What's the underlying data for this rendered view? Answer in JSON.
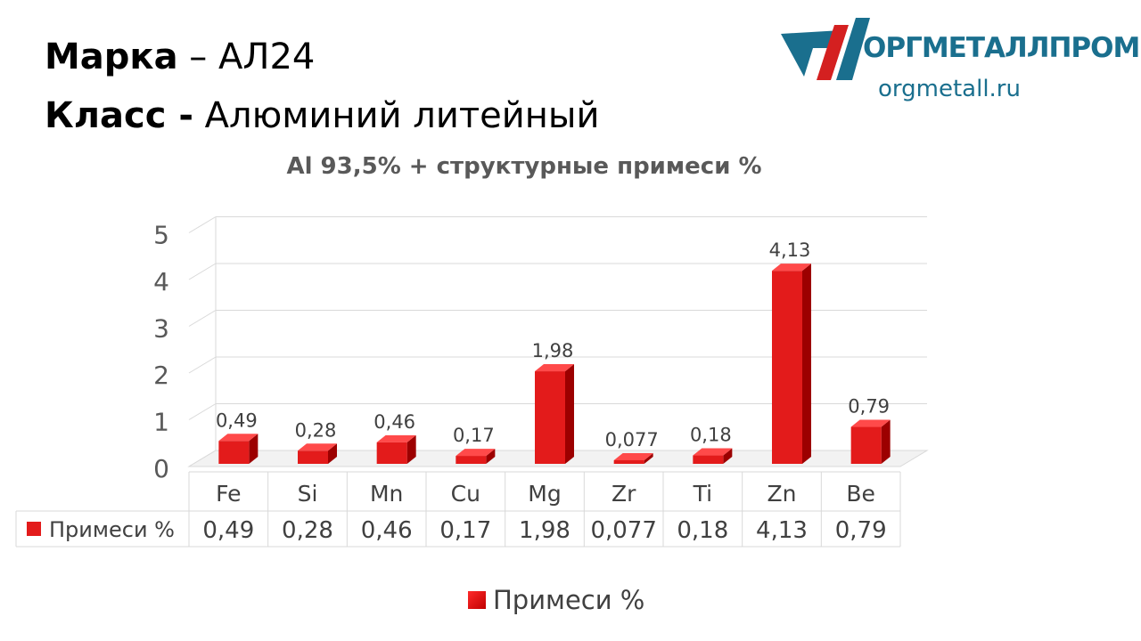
{
  "header": {
    "grade_label": "Марка",
    "grade_sep": " – ",
    "grade_value": "АЛ24",
    "class_label": "Класс -",
    "class_value": " Алюминий литейный"
  },
  "logo": {
    "name": "ОРГМЕТАЛЛПРОМ",
    "url": "orgmetall.ru"
  },
  "colors": {
    "bar_front": "#e31b1b",
    "bar_side": "#9c0000",
    "bar_top": "#ff4a4a",
    "logo_blue": "#1a6f8e",
    "logo_red": "#d42020"
  },
  "chart_data": {
    "type": "bar",
    "title": "Al 93,5% + структурные примеси %",
    "categories": [
      "Fe",
      "Si",
      "Mn",
      "Cu",
      "Mg",
      "Zr",
      "Ti",
      "Zn",
      "Be"
    ],
    "series": [
      {
        "name": "Примеси %",
        "values": [
          0.49,
          0.28,
          0.46,
          0.17,
          1.98,
          0.077,
          0.18,
          4.13,
          0.79
        ],
        "labels": [
          "0,49",
          "0,28",
          "0,46",
          "0,17",
          "1,98",
          "0,077",
          "0,18",
          "4,13",
          "0,79"
        ]
      }
    ],
    "yticks": [
      "0",
      "1",
      "2",
      "3",
      "4",
      "5"
    ],
    "ylim": [
      0,
      5
    ],
    "grid": true,
    "legend": "bottom",
    "data_table": true,
    "three_d": true
  }
}
